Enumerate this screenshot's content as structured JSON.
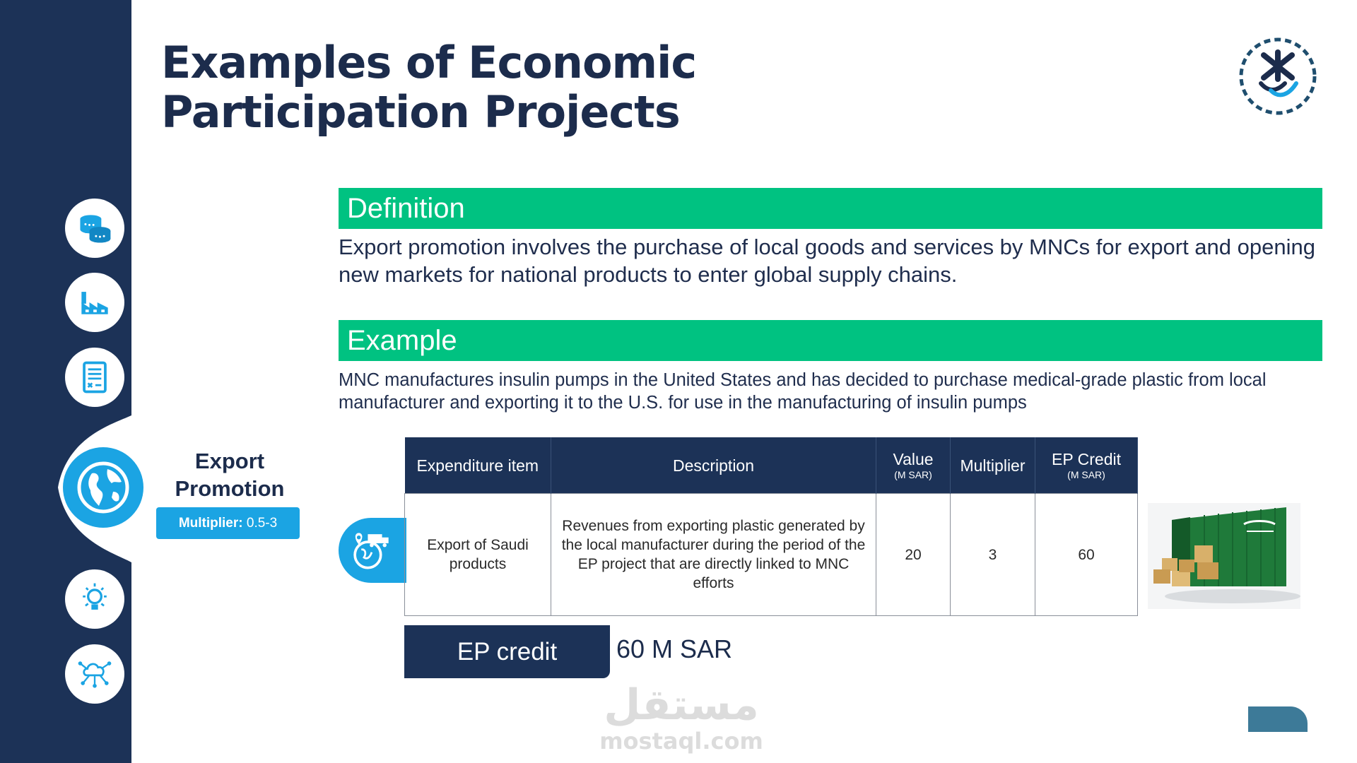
{
  "title_lines": [
    "Examples of Economic",
    "Participation Projects"
  ],
  "definition": {
    "heading": "Definition",
    "text": "Export promotion involves the purchase of local goods and services by MNCs for export and opening new markets for national products to enter global supply chains."
  },
  "example": {
    "heading": "Example",
    "text": "MNC manufactures insulin pumps in the United States and has decided to purchase medical-grade plastic from local manufacturer and exporting it to the U.S. for use in the manufacturing of insulin pumps"
  },
  "category": {
    "name": "Export Promotion",
    "multiplier_label": "Multiplier:",
    "multiplier_value": "0.5-3"
  },
  "table": {
    "headers": {
      "item": "Expenditure item",
      "description": "Description",
      "value": "Value",
      "value_unit": "(M SAR)",
      "multiplier": "Multiplier",
      "credit": "EP Credit",
      "credit_unit": "(M SAR)"
    },
    "row": {
      "item": "Export of Saudi products",
      "description": "Revenues from exporting plastic generated by the local manufacturer during the period of the EP project that are directly linked to MNC efforts",
      "value": "20",
      "multiplier": "3",
      "credit": "60"
    }
  },
  "ep_credit": {
    "label": "EP credit",
    "value": "60 M SAR"
  },
  "watermark": {
    "arabic": "مستقل",
    "latin": "mostaql.com"
  },
  "sidebar_icons": [
    "coins-icon",
    "factory-icon",
    "document-icon",
    "globe-icon",
    "lightbulb-icon",
    "cloud-network-icon"
  ],
  "colors": {
    "navy": "#1c3257",
    "green": "#00c281",
    "blue": "#1ba4e3"
  }
}
